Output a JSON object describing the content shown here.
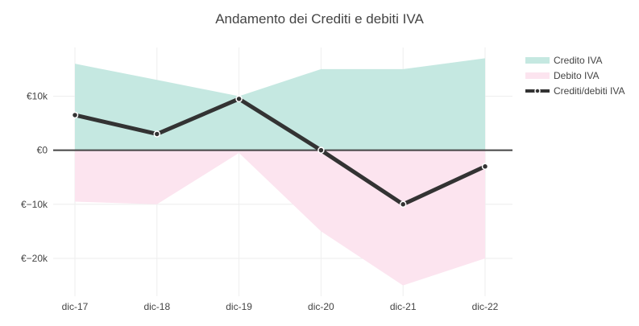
{
  "chart_data": {
    "type": "area",
    "title": "Andamento dei Crediti e debiti IVA",
    "categories": [
      "dic-17",
      "dic-18",
      "dic-19",
      "dic-20",
      "dic-21",
      "dic-22"
    ],
    "ylim": [
      -27000,
      19000
    ],
    "yticks": [
      {
        "value": 10000,
        "label": "€10k"
      },
      {
        "value": 0,
        "label": "€0"
      },
      {
        "value": -10000,
        "label": "€−10k"
      },
      {
        "value": -20000,
        "label": "€−20k"
      }
    ],
    "grid": true,
    "legend_position": "top-right",
    "series": [
      {
        "name": "Credito IVA",
        "kind": "area",
        "color": "#c5e8e1",
        "values": [
          16000,
          13000,
          10000,
          15000,
          15000,
          17000
        ]
      },
      {
        "name": "Debito IVA",
        "kind": "area",
        "color": "#fce4ef",
        "values": [
          -9500,
          -10000,
          -500,
          -15000,
          -25000,
          -20000
        ]
      },
      {
        "name": "Crediti/debiti IVA",
        "kind": "line",
        "color": "#333333",
        "values": [
          6500,
          3000,
          9500,
          0,
          -10000,
          -3000
        ]
      }
    ]
  }
}
